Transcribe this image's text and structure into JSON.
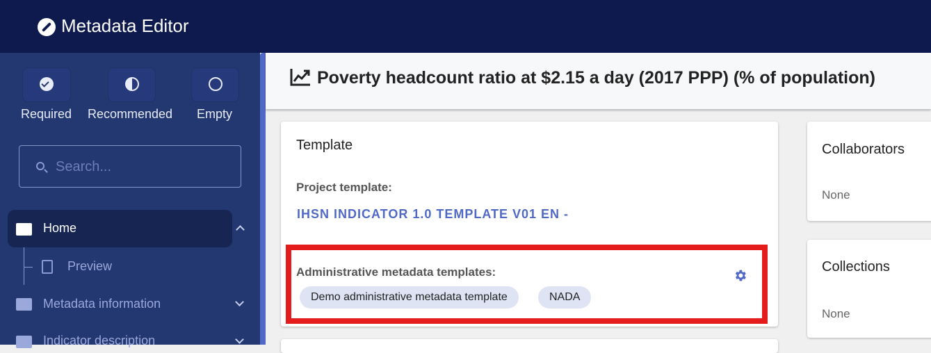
{
  "app": {
    "title": "Metadata Editor"
  },
  "filters": [
    {
      "label": "Required",
      "icon": "check-circle-icon"
    },
    {
      "label": "Recommended",
      "icon": "half-circle-icon"
    },
    {
      "label": "Empty",
      "icon": "empty-circle-icon"
    }
  ],
  "search": {
    "placeholder": "Search...",
    "value": ""
  },
  "nav": {
    "home": "Home",
    "preview": "Preview",
    "metadata_information": "Metadata information",
    "indicator_description": "Indicator description"
  },
  "page": {
    "title": "Poverty headcount ratio at $2.15 a day (2017 PPP) (% of population)"
  },
  "template_card": {
    "title": "Template",
    "project_template_label": "Project template:",
    "project_template_value": "IHSN INDICATOR 1.0 TEMPLATE V01 EN -",
    "admin_label": "Administrative metadata templates:",
    "admin_templates": [
      "Demo administrative metadata template",
      "NADA"
    ]
  },
  "collaborators": {
    "title": "Collaborators",
    "value": "None"
  },
  "collections": {
    "title": "Collections",
    "value": "None"
  },
  "colors": {
    "header": "#0e1a4e",
    "sidebar": "#233770",
    "accent": "#5169c6",
    "highlight": "#e51c1c"
  }
}
